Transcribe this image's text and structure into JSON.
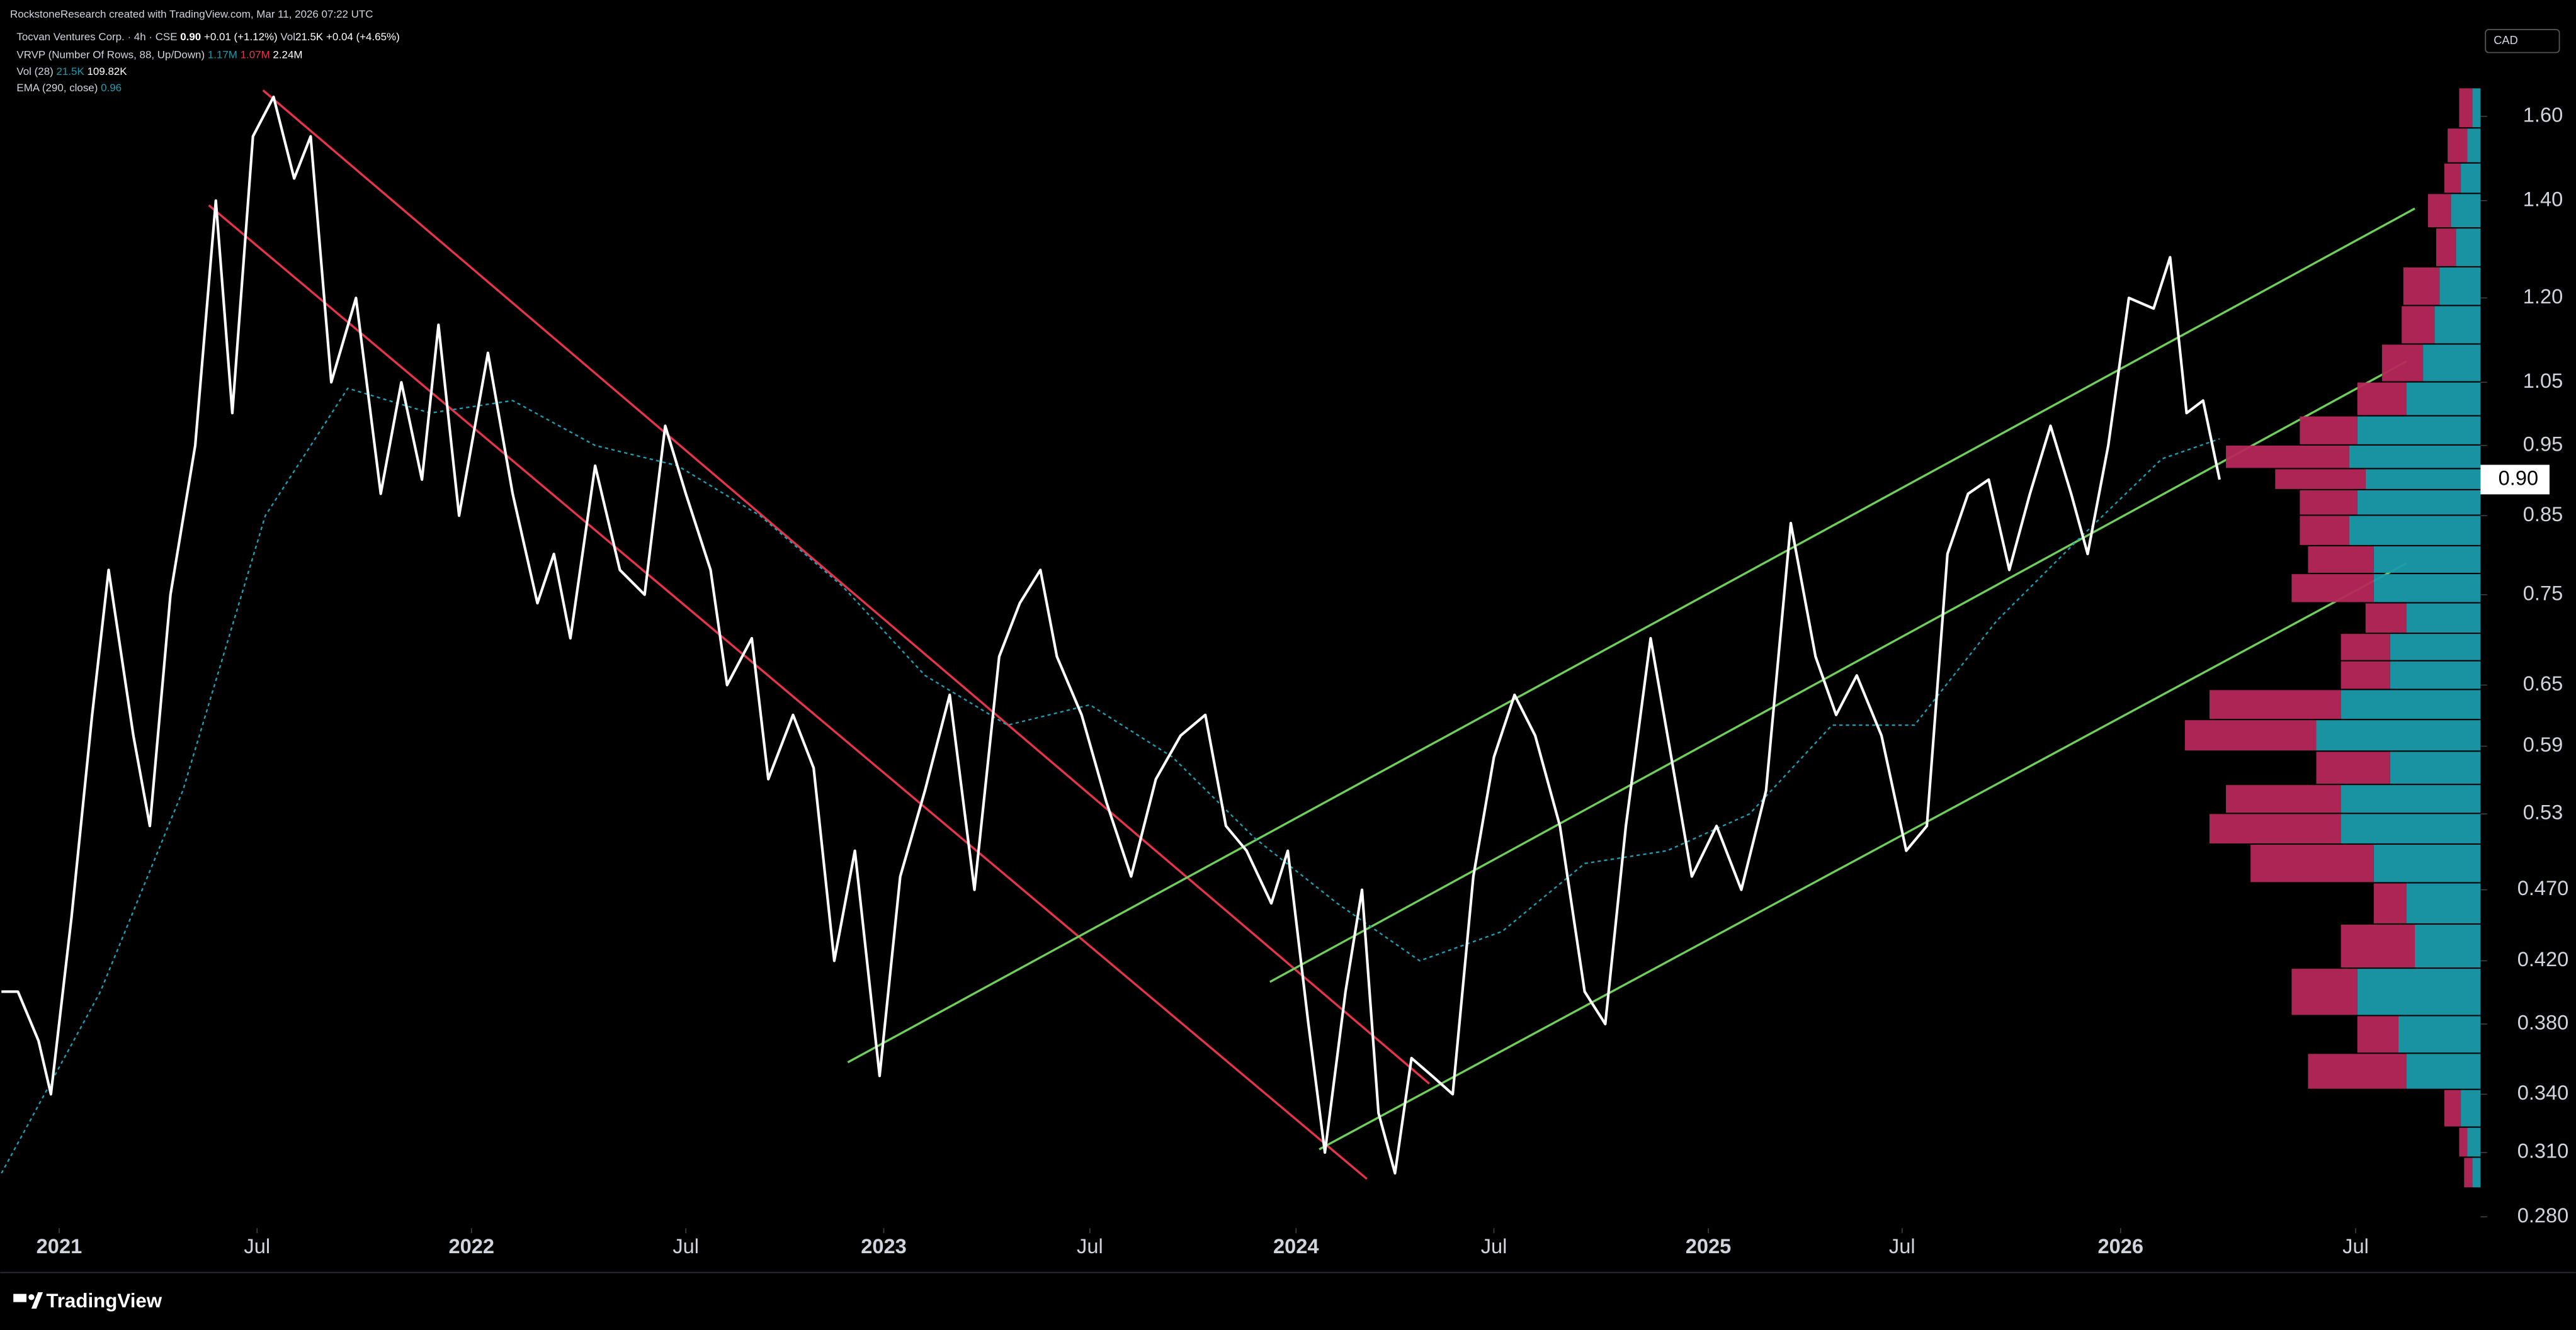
{
  "watermark": "RockstoneResearch created with TradingView.com, Mar 11, 2026 07:22 UTC",
  "legend": {
    "symbol": "Tocvan Ventures Corp. · 4h · CSE",
    "price": "0.90",
    "change": "+0.01 (+1.12%)",
    "vol_label": "Vol",
    "vol": "21.5K",
    "vol_change": "+0.04 (+4.65%)",
    "vrvp": "VRVP (Number Of Rows, 88, Up/Down)",
    "vrvp_up": "1.17M",
    "vrvp_down": "1.07M",
    "vrvp_total": "2.24M",
    "vol28": "Vol (28)",
    "vol28_a": "21.5K",
    "vol28_b": "109.82K",
    "ema": "EMA (290, close)",
    "ema_value": "0.96"
  },
  "currency": "CAD",
  "footer": "TradingView",
  "chart_data": {
    "type": "line",
    "log_scale": true,
    "grid": false,
    "xlim": [
      2020.857,
      2026.853
    ],
    "ylim": [
      0.275,
      1.85
    ],
    "xticks": [
      2021,
      {
        "value": 2021.48,
        "label": "Jul"
      },
      2022,
      {
        "value": 2022.52,
        "label": "Jul"
      },
      2023,
      {
        "value": 2023.5,
        "label": "Jul"
      },
      2024,
      {
        "value": 2024.48,
        "label": "Jul"
      },
      2025,
      {
        "value": 2025.47,
        "label": "Jul"
      },
      2026,
      {
        "value": 2026.57,
        "label": "Jul"
      }
    ],
    "yticks": [
      {
        "value": 1.6,
        "label": "1.60"
      },
      {
        "value": 1.4,
        "label": "1.40"
      },
      {
        "value": 1.2,
        "label": "1.20"
      },
      1.05,
      0.95,
      0.85,
      0.75,
      0.65,
      0.59,
      0.53,
      {
        "value": 0.47,
        "label": "0.470"
      },
      {
        "value": 0.42,
        "label": "0.420"
      },
      {
        "value": 0.38,
        "label": "0.380"
      },
      {
        "value": 0.34,
        "label": "0.340"
      },
      {
        "value": 0.31,
        "label": "0.310"
      },
      {
        "value": 0.28,
        "label": "0.280"
      }
    ],
    "last_price": 0.9,
    "last_price_label": "0.90",
    "series": [
      {
        "color": "#ffffff",
        "dash": false,
        "x": [
          2020.86,
          2020.9,
          2020.95,
          2020.98,
          2021.03,
          2021.08,
          2021.12,
          2021.18,
          2021.22,
          2021.27,
          2021.33,
          2021.38,
          2021.42,
          2021.47,
          2021.52,
          2021.57,
          2021.61,
          2021.66,
          2021.72,
          2021.78,
          2021.83,
          2021.88,
          2021.92,
          2021.97,
          2022.04,
          2022.1,
          2022.16,
          2022.2,
          2022.24,
          2022.3,
          2022.36,
          2022.42,
          2022.47,
          2022.52,
          2022.58,
          2022.62,
          2022.68,
          2022.72,
          2022.78,
          2022.83,
          2022.88,
          2022.93,
          2022.99,
          2023.04,
          2023.1,
          2023.16,
          2023.22,
          2023.28,
          2023.33,
          2023.38,
          2023.42,
          2023.48,
          2023.54,
          2023.6,
          2023.66,
          2023.72,
          2023.78,
          2023.83,
          2023.88,
          2023.94,
          2023.98,
          2024.03,
          2024.07,
          2024.12,
          2024.16,
          2024.2,
          2024.24,
          2024.28,
          2024.33,
          2024.38,
          2024.43,
          2024.48,
          2024.53,
          2024.58,
          2024.64,
          2024.7,
          2024.75,
          2024.8,
          2024.86,
          2024.91,
          2024.96,
          2025.02,
          2025.08,
          2025.14,
          2025.2,
          2025.26,
          2025.31,
          2025.36,
          2025.42,
          2025.48,
          2025.53,
          2025.58,
          2025.63,
          2025.68,
          2025.73,
          2025.78,
          2025.83,
          2025.88,
          2025.92,
          2025.97,
          2026.02,
          2026.08,
          2026.12,
          2026.16,
          2026.2,
          2026.24
        ],
        "values": [
          0.4,
          0.4,
          0.37,
          0.34,
          0.45,
          0.62,
          0.78,
          0.6,
          0.52,
          0.75,
          0.95,
          1.4,
          1.0,
          1.55,
          1.65,
          1.45,
          1.55,
          1.05,
          1.2,
          0.88,
          1.05,
          0.9,
          1.15,
          0.85,
          1.1,
          0.88,
          0.74,
          0.8,
          0.7,
          0.92,
          0.78,
          0.75,
          0.98,
          0.88,
          0.78,
          0.65,
          0.7,
          0.56,
          0.62,
          0.57,
          0.42,
          0.5,
          0.35,
          0.48,
          0.55,
          0.64,
          0.47,
          0.68,
          0.74,
          0.78,
          0.68,
          0.62,
          0.54,
          0.48,
          0.56,
          0.6,
          0.62,
          0.52,
          0.5,
          0.46,
          0.5,
          0.38,
          0.31,
          0.4,
          0.47,
          0.33,
          0.3,
          0.36,
          0.35,
          0.34,
          0.48,
          0.58,
          0.64,
          0.6,
          0.52,
          0.4,
          0.38,
          0.52,
          0.7,
          0.58,
          0.48,
          0.52,
          0.47,
          0.55,
          0.84,
          0.68,
          0.62,
          0.66,
          0.6,
          0.5,
          0.52,
          0.8,
          0.88,
          0.9,
          0.78,
          0.88,
          0.98,
          0.88,
          0.8,
          0.95,
          1.2,
          1.18,
          1.28,
          1.0,
          1.02,
          0.9
        ]
      },
      {
        "color": "#1e9fb4",
        "dash": true,
        "x": [
          2020.86,
          2021.1,
          2021.3,
          2021.5,
          2021.7,
          2021.9,
          2022.1,
          2022.3,
          2022.5,
          2022.7,
          2022.9,
          2023.1,
          2023.3,
          2023.5,
          2023.7,
          2023.9,
          2024.1,
          2024.3,
          2024.5,
          2024.7,
          2024.9,
          2025.1,
          2025.3,
          2025.5,
          2025.7,
          2025.9,
          2026.1,
          2026.24
        ],
        "values": [
          0.3,
          0.4,
          0.55,
          0.85,
          1.04,
          1.0,
          1.02,
          0.95,
          0.92,
          0.85,
          0.76,
          0.66,
          0.61,
          0.63,
          0.58,
          0.51,
          0.46,
          0.42,
          0.44,
          0.49,
          0.5,
          0.53,
          0.61,
          0.61,
          0.72,
          0.82,
          0.93,
          0.96
        ]
      }
    ],
    "volume_profile": {
      "up_color": "#1a9aaa",
      "down_color": "#b5275a",
      "prices": [
        1.62,
        1.52,
        1.45,
        1.38,
        1.3,
        1.22,
        1.15,
        1.08,
        1.02,
        0.97,
        0.93,
        0.9,
        0.87,
        0.83,
        0.79,
        0.76,
        0.72,
        0.69,
        0.66,
        0.63,
        0.6,
        0.57,
        0.54,
        0.52,
        0.49,
        0.46,
        0.43,
        0.4,
        0.37,
        0.355,
        0.33,
        0.315,
        0.3
      ],
      "up": [
        5,
        8,
        12,
        18,
        15,
        25,
        28,
        35,
        45,
        75,
        80,
        70,
        75,
        80,
        65,
        65,
        45,
        55,
        55,
        85,
        100,
        55,
        85,
        85,
        65,
        45,
        40,
        75,
        50,
        45,
        12,
        8,
        5
      ],
      "down": [
        8,
        12,
        10,
        14,
        12,
        22,
        20,
        25,
        30,
        35,
        75,
        55,
        35,
        30,
        40,
        50,
        25,
        30,
        30,
        80,
        80,
        45,
        70,
        80,
        75,
        20,
        45,
        40,
        25,
        60,
        10,
        5,
        5
      ]
    }
  }
}
